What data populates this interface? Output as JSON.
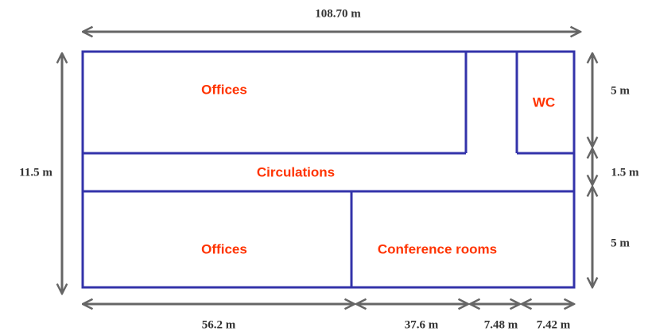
{
  "rooms": {
    "offices_top": "Offices",
    "wc": "WC",
    "circulations": "Circulations",
    "offices_bottom": "Offices",
    "conference": "Conference rooms"
  },
  "dimensions": {
    "total_length": "108.70 m",
    "total_width": "11.5 m",
    "right": [
      "5 m",
      "1.5 m",
      "5 m"
    ],
    "bottom": [
      "56.2 m",
      "37.6 m",
      "7.48 m",
      "7.42 m"
    ]
  }
}
